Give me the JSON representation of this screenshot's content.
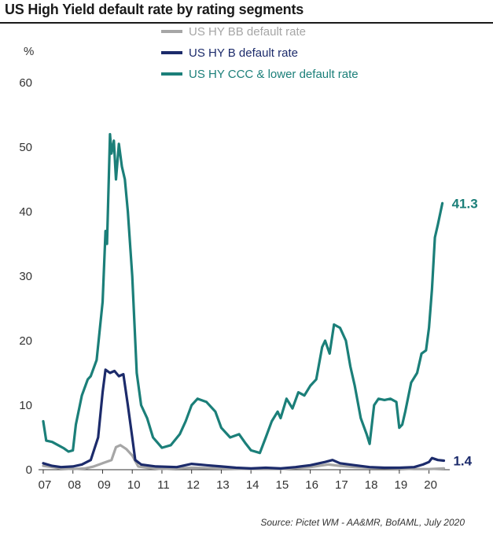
{
  "title": "US High Yield default rate by rating segments",
  "source": "Source: Pictet WM - AA&MR, BofAML, July 2020",
  "chart_data": {
    "type": "line",
    "title": "US High Yield default rate by rating segments",
    "ylabel": "%",
    "xlabel": "",
    "ylim": [
      0,
      60
    ],
    "xlim": [
      2007,
      2020.7
    ],
    "y_ticks": [
      "0",
      "10",
      "20",
      "30",
      "40",
      "50",
      "60"
    ],
    "x_ticks": [
      "07",
      "08",
      "09",
      "10",
      "11",
      "12",
      "13",
      "14",
      "15",
      "16",
      "17",
      "18",
      "19",
      "20"
    ],
    "grid": false,
    "legend_position": "top-center",
    "series": [
      {
        "name": "US HY BB default rate",
        "color": "#a6a6a6",
        "points": [
          [
            2007.0,
            0.6
          ],
          [
            2007.3,
            0.4
          ],
          [
            2007.6,
            0.2
          ],
          [
            2008.0,
            0.1
          ],
          [
            2008.4,
            0.2
          ],
          [
            2008.7,
            0.5
          ],
          [
            2009.0,
            1.0
          ],
          [
            2009.3,
            1.5
          ],
          [
            2009.45,
            3.5
          ],
          [
            2009.6,
            3.8
          ],
          [
            2009.8,
            3.2
          ],
          [
            2010.0,
            2.2
          ],
          [
            2010.2,
            0.5
          ],
          [
            2010.5,
            0.3
          ],
          [
            2011.0,
            0.1
          ],
          [
            2012.0,
            0.3
          ],
          [
            2013.0,
            0.2
          ],
          [
            2014.0,
            0.1
          ],
          [
            2015.0,
            0.1
          ],
          [
            2016.0,
            0.4
          ],
          [
            2016.6,
            0.8
          ],
          [
            2017.0,
            0.6
          ],
          [
            2017.5,
            0.4
          ],
          [
            2018.0,
            0.3
          ],
          [
            2019.0,
            0.2
          ],
          [
            2019.5,
            0.1
          ],
          [
            2020.0,
            0.1
          ],
          [
            2020.5,
            0.2
          ]
        ]
      },
      {
        "name": "US HY B default rate",
        "color": "#1c2b6b",
        "end_label": "1.4",
        "points": [
          [
            2007.0,
            1.0
          ],
          [
            2007.3,
            0.6
          ],
          [
            2007.6,
            0.4
          ],
          [
            2008.0,
            0.5
          ],
          [
            2008.3,
            0.8
          ],
          [
            2008.6,
            1.5
          ],
          [
            2008.85,
            5.0
          ],
          [
            2009.0,
            12.0
          ],
          [
            2009.1,
            15.5
          ],
          [
            2009.25,
            15.0
          ],
          [
            2009.4,
            15.3
          ],
          [
            2009.55,
            14.5
          ],
          [
            2009.7,
            14.8
          ],
          [
            2009.85,
            10.0
          ],
          [
            2010.0,
            5.0
          ],
          [
            2010.1,
            1.5
          ],
          [
            2010.3,
            0.8
          ],
          [
            2010.8,
            0.5
          ],
          [
            2011.5,
            0.4
          ],
          [
            2012.0,
            0.9
          ],
          [
            2012.5,
            0.7
          ],
          [
            2013.0,
            0.5
          ],
          [
            2013.5,
            0.3
          ],
          [
            2014.0,
            0.2
          ],
          [
            2014.5,
            0.3
          ],
          [
            2015.0,
            0.2
          ],
          [
            2015.5,
            0.4
          ],
          [
            2016.0,
            0.7
          ],
          [
            2016.5,
            1.2
          ],
          [
            2016.75,
            1.5
          ],
          [
            2017.0,
            1.0
          ],
          [
            2017.5,
            0.7
          ],
          [
            2018.0,
            0.4
          ],
          [
            2018.5,
            0.3
          ],
          [
            2019.0,
            0.3
          ],
          [
            2019.5,
            0.4
          ],
          [
            2019.8,
            0.8
          ],
          [
            2020.0,
            1.2
          ],
          [
            2020.1,
            1.8
          ],
          [
            2020.3,
            1.5
          ],
          [
            2020.5,
            1.4
          ]
        ]
      },
      {
        "name": "US HY CCC & lower default rate",
        "color": "#1b7f79",
        "end_label": "41.3",
        "points": [
          [
            2007.0,
            7.5
          ],
          [
            2007.1,
            4.5
          ],
          [
            2007.3,
            4.3
          ],
          [
            2007.5,
            3.8
          ],
          [
            2007.7,
            3.3
          ],
          [
            2007.85,
            2.8
          ],
          [
            2008.0,
            3.0
          ],
          [
            2008.1,
            7.0
          ],
          [
            2008.3,
            11.5
          ],
          [
            2008.5,
            14.0
          ],
          [
            2008.6,
            14.5
          ],
          [
            2008.8,
            17.0
          ],
          [
            2009.0,
            26.0
          ],
          [
            2009.1,
            37.0
          ],
          [
            2009.15,
            35.0
          ],
          [
            2009.25,
            52.0
          ],
          [
            2009.3,
            49.0
          ],
          [
            2009.38,
            51.0
          ],
          [
            2009.45,
            45.0
          ],
          [
            2009.55,
            50.5
          ],
          [
            2009.65,
            47.0
          ],
          [
            2009.75,
            45.0
          ],
          [
            2009.85,
            40.0
          ],
          [
            2010.0,
            30.0
          ],
          [
            2010.15,
            15.0
          ],
          [
            2010.3,
            10.0
          ],
          [
            2010.5,
            8.0
          ],
          [
            2010.7,
            5.0
          ],
          [
            2010.85,
            4.2
          ],
          [
            2011.0,
            3.4
          ],
          [
            2011.3,
            3.8
          ],
          [
            2011.6,
            5.5
          ],
          [
            2011.8,
            7.5
          ],
          [
            2012.0,
            10.0
          ],
          [
            2012.2,
            11.0
          ],
          [
            2012.5,
            10.5
          ],
          [
            2012.8,
            9.0
          ],
          [
            2013.0,
            6.5
          ],
          [
            2013.3,
            5.0
          ],
          [
            2013.6,
            5.5
          ],
          [
            2013.8,
            4.2
          ],
          [
            2014.0,
            3.0
          ],
          [
            2014.3,
            2.6
          ],
          [
            2014.5,
            5.0
          ],
          [
            2014.7,
            7.5
          ],
          [
            2014.9,
            9.0
          ],
          [
            2015.0,
            8.0
          ],
          [
            2015.2,
            11.0
          ],
          [
            2015.4,
            9.5
          ],
          [
            2015.6,
            12.0
          ],
          [
            2015.8,
            11.5
          ],
          [
            2016.0,
            13.0
          ],
          [
            2016.2,
            14.0
          ],
          [
            2016.4,
            19.0
          ],
          [
            2016.5,
            20.0
          ],
          [
            2016.65,
            18.0
          ],
          [
            2016.8,
            22.5
          ],
          [
            2017.0,
            22.0
          ],
          [
            2017.2,
            20.0
          ],
          [
            2017.35,
            16.0
          ],
          [
            2017.5,
            13.0
          ],
          [
            2017.7,
            8.0
          ],
          [
            2017.9,
            5.5
          ],
          [
            2018.0,
            4.0
          ],
          [
            2018.15,
            10.0
          ],
          [
            2018.3,
            11.0
          ],
          [
            2018.5,
            10.8
          ],
          [
            2018.7,
            11.0
          ],
          [
            2018.9,
            10.5
          ],
          [
            2019.0,
            6.5
          ],
          [
            2019.1,
            7.0
          ],
          [
            2019.2,
            9.0
          ],
          [
            2019.4,
            13.5
          ],
          [
            2019.6,
            15.0
          ],
          [
            2019.75,
            18.0
          ],
          [
            2019.9,
            18.5
          ],
          [
            2020.0,
            22.0
          ],
          [
            2020.1,
            28.0
          ],
          [
            2020.2,
            36.0
          ],
          [
            2020.3,
            38.0
          ],
          [
            2020.45,
            41.3
          ]
        ]
      }
    ]
  }
}
